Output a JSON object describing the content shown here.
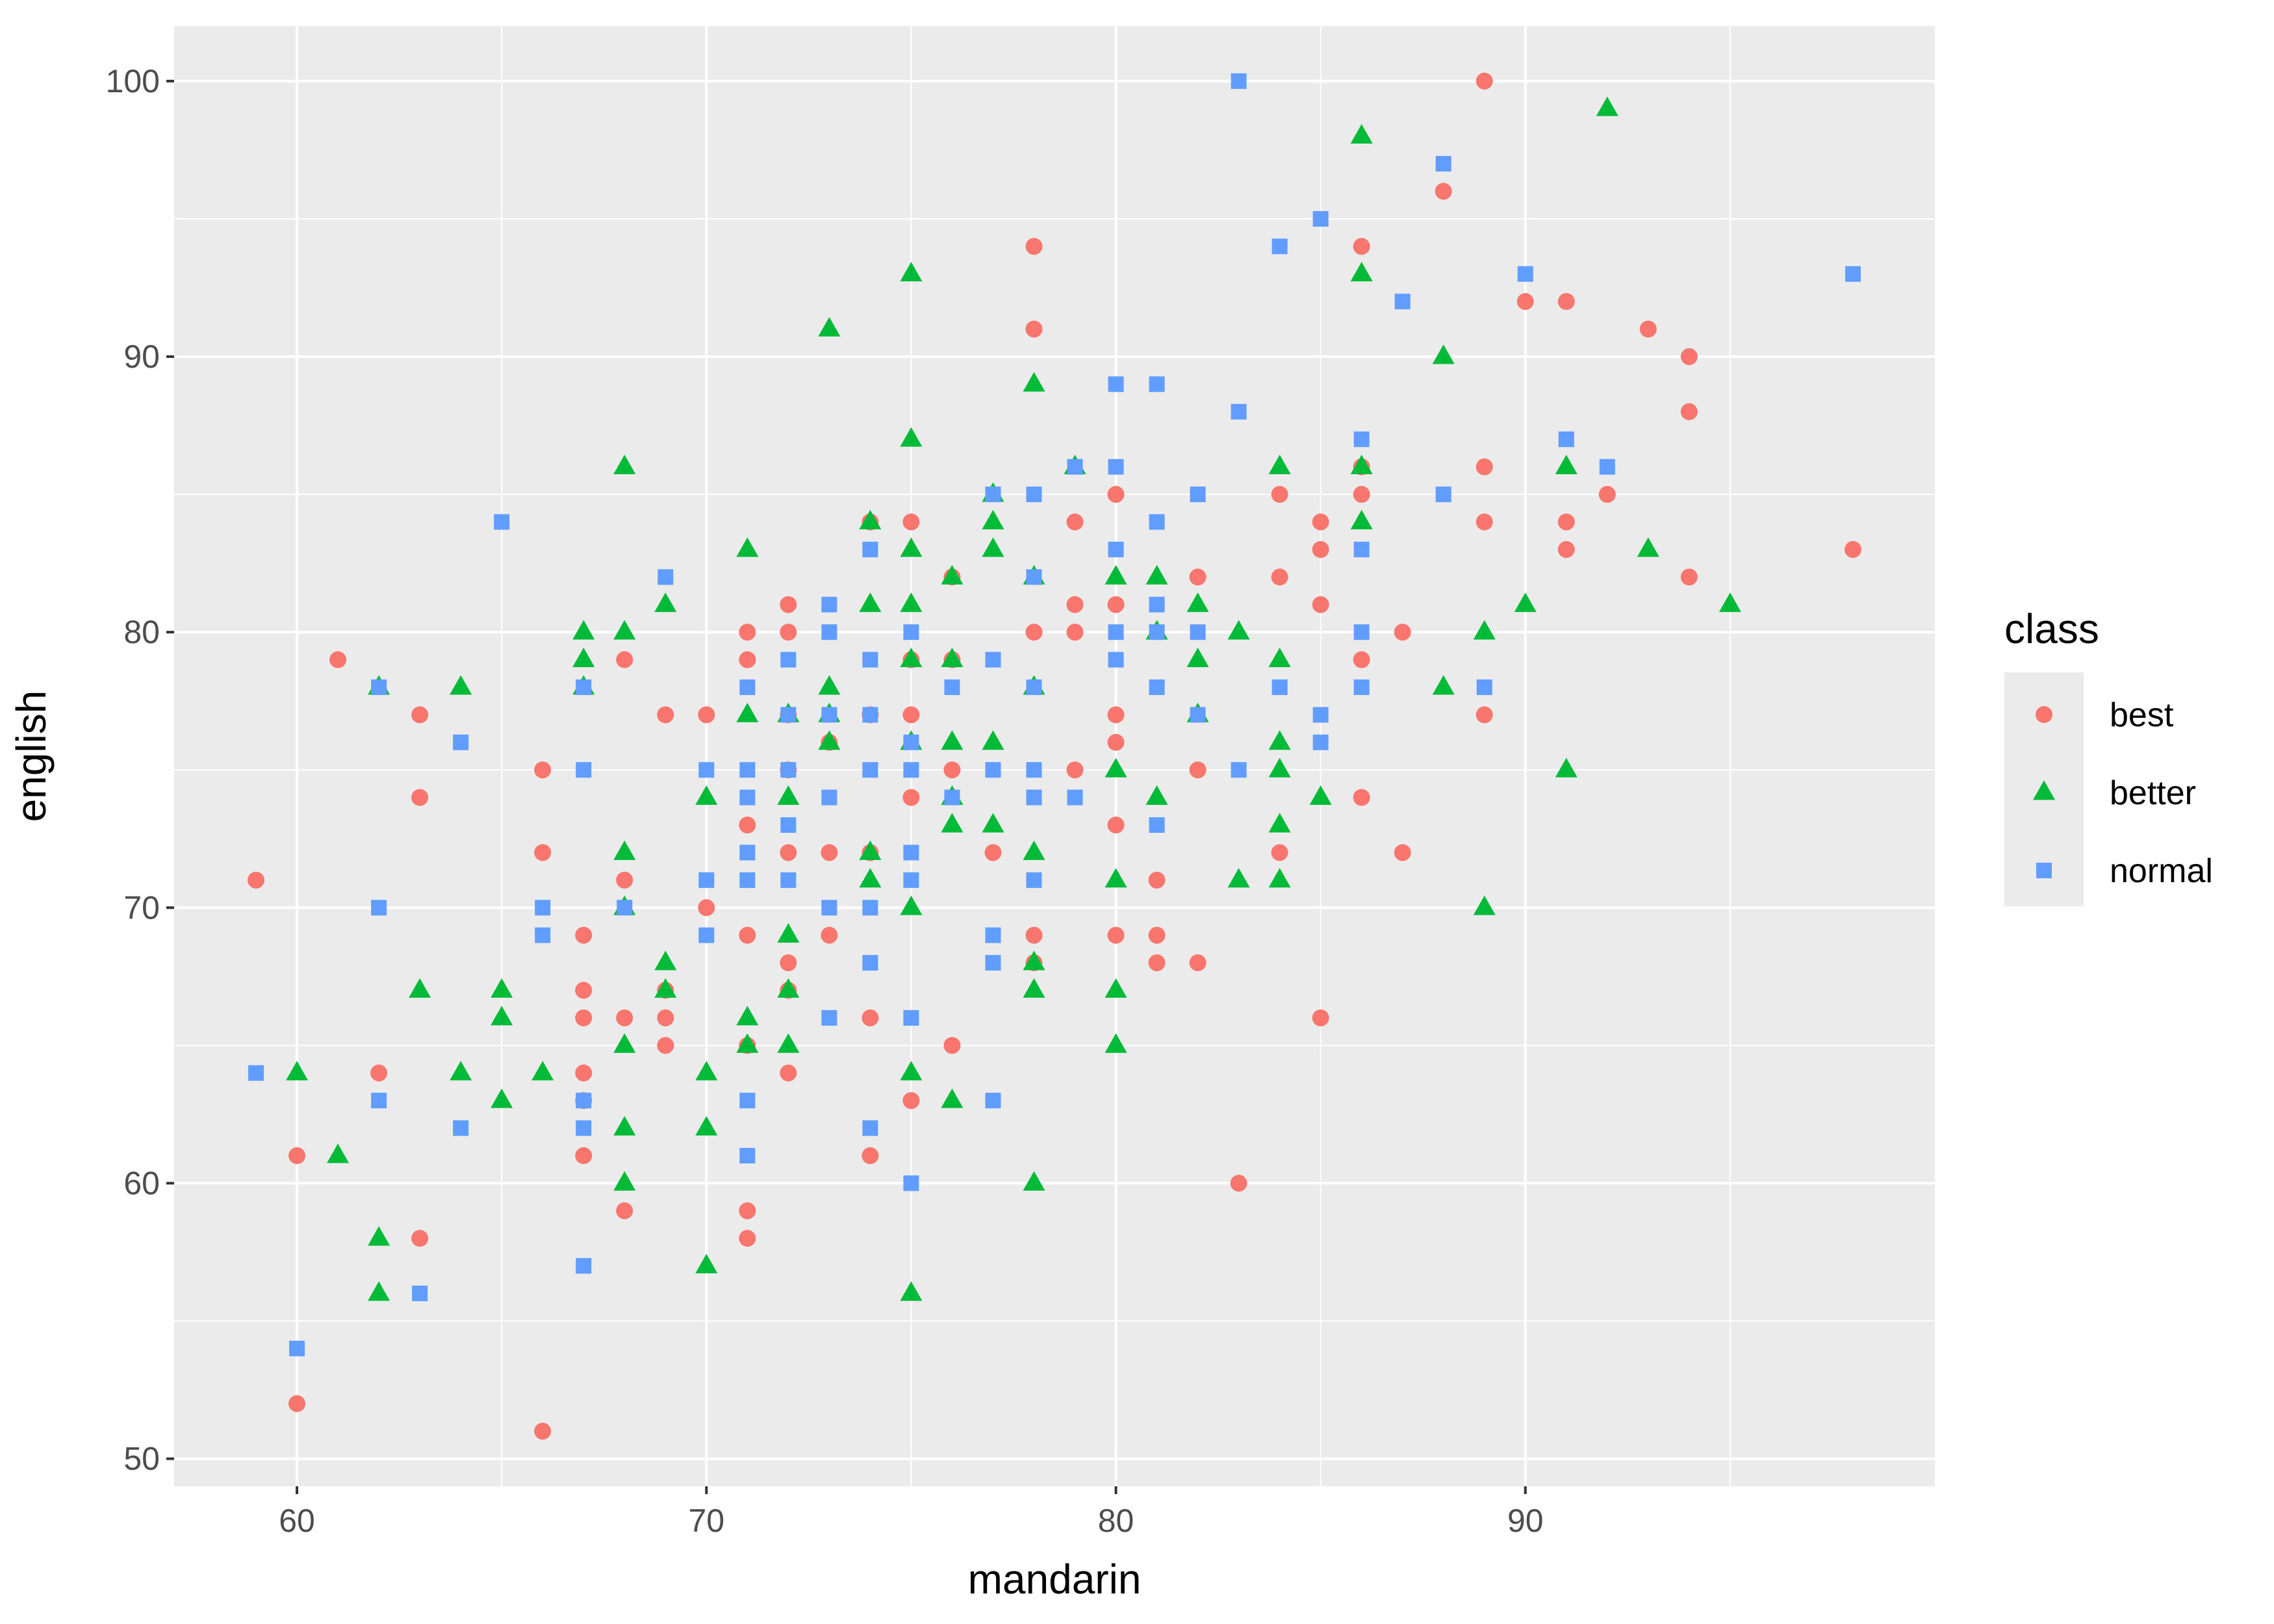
{
  "chart_data": {
    "type": "scatter",
    "title": "",
    "xlabel": "mandarin",
    "ylabel": "english",
    "xlim": [
      57,
      100
    ],
    "ylim": [
      49,
      102
    ],
    "x_ticks": [
      60,
      70,
      80,
      90
    ],
    "y_ticks": [
      50,
      60,
      70,
      80,
      90,
      100
    ],
    "x_tick_labels": [
      "60",
      "70",
      "80",
      "90"
    ],
    "y_tick_labels": [
      "50",
      "60",
      "70",
      "80",
      "90",
      "100"
    ],
    "grid": true,
    "legend": {
      "title": "class",
      "placement": "right"
    },
    "series": [
      {
        "name": "best",
        "marker": "circle",
        "color": "#F8766D",
        "points": [
          [
            59,
            71
          ],
          [
            60,
            61
          ],
          [
            60,
            52
          ],
          [
            61,
            79
          ],
          [
            62,
            64
          ],
          [
            63,
            77
          ],
          [
            63,
            74
          ],
          [
            63,
            58
          ],
          [
            66,
            75
          ],
          [
            66,
            72
          ],
          [
            66,
            51
          ],
          [
            67,
            69
          ],
          [
            67,
            67
          ],
          [
            67,
            66
          ],
          [
            67,
            64
          ],
          [
            67,
            63
          ],
          [
            67,
            61
          ],
          [
            68,
            79
          ],
          [
            68,
            71
          ],
          [
            68,
            66
          ],
          [
            68,
            59
          ],
          [
            69,
            77
          ],
          [
            69,
            67
          ],
          [
            69,
            66
          ],
          [
            69,
            65
          ],
          [
            70,
            77
          ],
          [
            70,
            70
          ],
          [
            71,
            80
          ],
          [
            71,
            79
          ],
          [
            71,
            73
          ],
          [
            71,
            69
          ],
          [
            71,
            65
          ],
          [
            71,
            59
          ],
          [
            71,
            58
          ],
          [
            72,
            81
          ],
          [
            72,
            80
          ],
          [
            72,
            77
          ],
          [
            72,
            75
          ],
          [
            72,
            72
          ],
          [
            72,
            68
          ],
          [
            72,
            67
          ],
          [
            72,
            64
          ],
          [
            73,
            76
          ],
          [
            73,
            72
          ],
          [
            73,
            69
          ],
          [
            74,
            84
          ],
          [
            74,
            77
          ],
          [
            74,
            72
          ],
          [
            74,
            66
          ],
          [
            74,
            61
          ],
          [
            75,
            84
          ],
          [
            75,
            79
          ],
          [
            75,
            77
          ],
          [
            75,
            74
          ],
          [
            75,
            63
          ],
          [
            76,
            82
          ],
          [
            76,
            79
          ],
          [
            76,
            75
          ],
          [
            76,
            65
          ],
          [
            77,
            72
          ],
          [
            78,
            94
          ],
          [
            78,
            91
          ],
          [
            78,
            80
          ],
          [
            78,
            69
          ],
          [
            78,
            68
          ],
          [
            79,
            84
          ],
          [
            79,
            81
          ],
          [
            79,
            80
          ],
          [
            79,
            75
          ],
          [
            80,
            85
          ],
          [
            80,
            81
          ],
          [
            80,
            77
          ],
          [
            80,
            76
          ],
          [
            80,
            73
          ],
          [
            80,
            69
          ],
          [
            81,
            71
          ],
          [
            81,
            69
          ],
          [
            81,
            68
          ],
          [
            82,
            82
          ],
          [
            82,
            75
          ],
          [
            82,
            68
          ],
          [
            83,
            60
          ],
          [
            84,
            85
          ],
          [
            84,
            82
          ],
          [
            84,
            72
          ],
          [
            85,
            84
          ],
          [
            85,
            83
          ],
          [
            85,
            81
          ],
          [
            85,
            66
          ],
          [
            86,
            94
          ],
          [
            86,
            86
          ],
          [
            86,
            85
          ],
          [
            86,
            79
          ],
          [
            86,
            74
          ],
          [
            87,
            80
          ],
          [
            87,
            72
          ],
          [
            88,
            96
          ],
          [
            89,
            100
          ],
          [
            89,
            86
          ],
          [
            89,
            84
          ],
          [
            89,
            77
          ],
          [
            90,
            92
          ],
          [
            91,
            92
          ],
          [
            91,
            84
          ],
          [
            91,
            83
          ],
          [
            92,
            85
          ],
          [
            93,
            91
          ],
          [
            94,
            90
          ],
          [
            94,
            88
          ],
          [
            94,
            82
          ],
          [
            98,
            83
          ]
        ]
      },
      {
        "name": "better",
        "marker": "triangle",
        "color": "#00BA38",
        "points": [
          [
            60,
            64
          ],
          [
            61,
            61
          ],
          [
            62,
            78
          ],
          [
            62,
            58
          ],
          [
            62,
            56
          ],
          [
            63,
            67
          ],
          [
            64,
            78
          ],
          [
            64,
            64
          ],
          [
            65,
            67
          ],
          [
            65,
            66
          ],
          [
            65,
            63
          ],
          [
            66,
            64
          ],
          [
            67,
            80
          ],
          [
            67,
            79
          ],
          [
            67,
            78
          ],
          [
            68,
            86
          ],
          [
            68,
            80
          ],
          [
            68,
            72
          ],
          [
            68,
            70
          ],
          [
            68,
            65
          ],
          [
            68,
            62
          ],
          [
            68,
            60
          ],
          [
            69,
            81
          ],
          [
            69,
            68
          ],
          [
            69,
            67
          ],
          [
            70,
            74
          ],
          [
            70,
            64
          ],
          [
            70,
            62
          ],
          [
            70,
            57
          ],
          [
            71,
            83
          ],
          [
            71,
            77
          ],
          [
            71,
            66
          ],
          [
            71,
            65
          ],
          [
            72,
            77
          ],
          [
            72,
            74
          ],
          [
            72,
            69
          ],
          [
            72,
            67
          ],
          [
            72,
            65
          ],
          [
            73,
            91
          ],
          [
            73,
            78
          ],
          [
            73,
            76
          ],
          [
            73,
            77
          ],
          [
            74,
            84
          ],
          [
            74,
            81
          ],
          [
            74,
            72
          ],
          [
            74,
            71
          ],
          [
            75,
            93
          ],
          [
            75,
            87
          ],
          [
            75,
            83
          ],
          [
            75,
            81
          ],
          [
            75,
            79
          ],
          [
            75,
            76
          ],
          [
            75,
            70
          ],
          [
            75,
            64
          ],
          [
            75,
            56
          ],
          [
            76,
            82
          ],
          [
            76,
            79
          ],
          [
            76,
            76
          ],
          [
            76,
            74
          ],
          [
            76,
            73
          ],
          [
            76,
            63
          ],
          [
            77,
            85
          ],
          [
            77,
            84
          ],
          [
            77,
            83
          ],
          [
            77,
            76
          ],
          [
            77,
            73
          ],
          [
            78,
            89
          ],
          [
            78,
            82
          ],
          [
            78,
            78
          ],
          [
            78,
            72
          ],
          [
            78,
            68
          ],
          [
            78,
            67
          ],
          [
            78,
            60
          ],
          [
            79,
            86
          ],
          [
            80,
            82
          ],
          [
            80,
            75
          ],
          [
            80,
            71
          ],
          [
            80,
            67
          ],
          [
            80,
            65
          ],
          [
            81,
            82
          ],
          [
            81,
            80
          ],
          [
            81,
            74
          ],
          [
            82,
            81
          ],
          [
            82,
            79
          ],
          [
            82,
            77
          ],
          [
            83,
            80
          ],
          [
            83,
            71
          ],
          [
            84,
            86
          ],
          [
            84,
            79
          ],
          [
            84,
            76
          ],
          [
            84,
            75
          ],
          [
            84,
            73
          ],
          [
            84,
            71
          ],
          [
            85,
            74
          ],
          [
            86,
            98
          ],
          [
            86,
            93
          ],
          [
            86,
            86
          ],
          [
            86,
            84
          ],
          [
            88,
            90
          ],
          [
            88,
            78
          ],
          [
            89,
            80
          ],
          [
            89,
            70
          ],
          [
            90,
            81
          ],
          [
            91,
            86
          ],
          [
            91,
            75
          ],
          [
            92,
            99
          ],
          [
            93,
            83
          ],
          [
            95,
            81
          ]
        ]
      },
      {
        "name": "normal",
        "marker": "square",
        "color": "#619CFF",
        "points": [
          [
            59,
            64
          ],
          [
            60,
            54
          ],
          [
            62,
            78
          ],
          [
            62,
            70
          ],
          [
            62,
            63
          ],
          [
            63,
            56
          ],
          [
            64,
            76
          ],
          [
            64,
            62
          ],
          [
            65,
            84
          ],
          [
            66,
            70
          ],
          [
            66,
            69
          ],
          [
            67,
            78
          ],
          [
            67,
            75
          ],
          [
            67,
            63
          ],
          [
            67,
            62
          ],
          [
            67,
            57
          ],
          [
            68,
            70
          ],
          [
            69,
            82
          ],
          [
            70,
            75
          ],
          [
            70,
            71
          ],
          [
            70,
            69
          ],
          [
            71,
            78
          ],
          [
            71,
            75
          ],
          [
            71,
            74
          ],
          [
            71,
            72
          ],
          [
            71,
            71
          ],
          [
            71,
            63
          ],
          [
            71,
            61
          ],
          [
            72,
            79
          ],
          [
            72,
            77
          ],
          [
            72,
            75
          ],
          [
            72,
            73
          ],
          [
            72,
            71
          ],
          [
            73,
            81
          ],
          [
            73,
            80
          ],
          [
            73,
            77
          ],
          [
            73,
            74
          ],
          [
            73,
            70
          ],
          [
            73,
            66
          ],
          [
            74,
            83
          ],
          [
            74,
            79
          ],
          [
            74,
            77
          ],
          [
            74,
            75
          ],
          [
            74,
            70
          ],
          [
            74,
            68
          ],
          [
            74,
            62
          ],
          [
            75,
            80
          ],
          [
            75,
            76
          ],
          [
            75,
            75
          ],
          [
            75,
            72
          ],
          [
            75,
            71
          ],
          [
            75,
            66
          ],
          [
            75,
            60
          ],
          [
            76,
            78
          ],
          [
            76,
            74
          ],
          [
            77,
            85
          ],
          [
            77,
            79
          ],
          [
            77,
            75
          ],
          [
            77,
            69
          ],
          [
            77,
            68
          ],
          [
            77,
            63
          ],
          [
            78,
            85
          ],
          [
            78,
            82
          ],
          [
            78,
            78
          ],
          [
            78,
            75
          ],
          [
            78,
            74
          ],
          [
            78,
            71
          ],
          [
            79,
            86
          ],
          [
            79,
            74
          ],
          [
            80,
            89
          ],
          [
            80,
            86
          ],
          [
            80,
            83
          ],
          [
            80,
            80
          ],
          [
            80,
            79
          ],
          [
            81,
            89
          ],
          [
            81,
            84
          ],
          [
            81,
            81
          ],
          [
            81,
            80
          ],
          [
            81,
            78
          ],
          [
            81,
            73
          ],
          [
            82,
            85
          ],
          [
            82,
            80
          ],
          [
            82,
            77
          ],
          [
            83,
            100
          ],
          [
            83,
            88
          ],
          [
            83,
            75
          ],
          [
            84,
            94
          ],
          [
            84,
            78
          ],
          [
            85,
            95
          ],
          [
            85,
            77
          ],
          [
            85,
            76
          ],
          [
            86,
            87
          ],
          [
            86,
            83
          ],
          [
            86,
            80
          ],
          [
            86,
            78
          ],
          [
            87,
            92
          ],
          [
            88,
            97
          ],
          [
            88,
            85
          ],
          [
            89,
            78
          ],
          [
            90,
            93
          ],
          [
            91,
            87
          ],
          [
            92,
            86
          ],
          [
            98,
            93
          ]
        ]
      }
    ]
  }
}
